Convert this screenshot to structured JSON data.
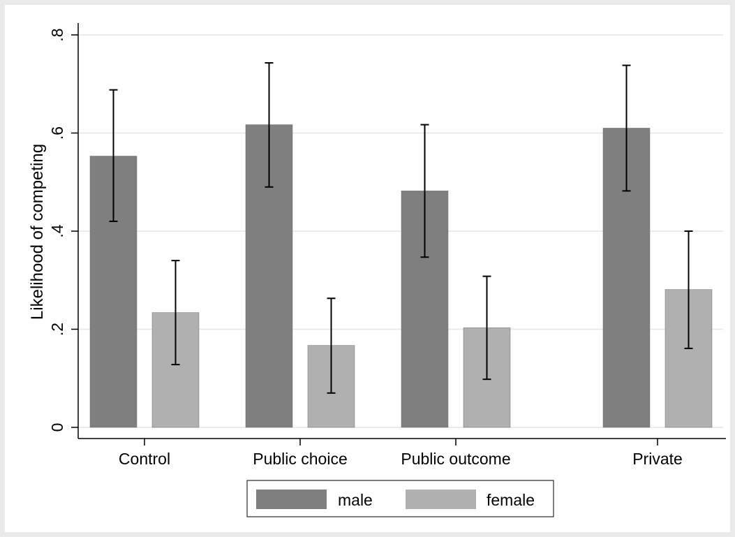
{
  "chart_data": {
    "type": "bar",
    "title": "",
    "xlabel": "",
    "ylabel": "Likelihood of competing",
    "ylim": [
      0,
      0.8
    ],
    "yticks": [
      {
        "value": 0,
        "label": "0"
      },
      {
        "value": 0.2,
        "label": ".2"
      },
      {
        "value": 0.4,
        "label": ".4"
      },
      {
        "value": 0.6,
        "label": ".6"
      },
      {
        "value": 0.8,
        "label": ".8"
      }
    ],
    "grid": true,
    "legend_position": "bottom",
    "categories": [
      "Control",
      "Public choice",
      "Public outcome",
      "Private"
    ],
    "series": [
      {
        "name": "male",
        "color": "#7f7f7f",
        "values": [
          0.553,
          0.617,
          0.482,
          0.61
        ],
        "ci_low": [
          0.42,
          0.49,
          0.347,
          0.482
        ],
        "ci_high": [
          0.688,
          0.743,
          0.617,
          0.738
        ]
      },
      {
        "name": "female",
        "color": "#b0b0b0",
        "values": [
          0.234,
          0.167,
          0.203,
          0.281
        ],
        "ci_low": [
          0.128,
          0.07,
          0.098,
          0.161
        ],
        "ci_high": [
          0.34,
          0.263,
          0.308,
          0.4
        ]
      }
    ],
    "colors": {
      "outer_background": "#eaeaea",
      "plot_background": "#ffffff",
      "gridline": "#e6e6e6"
    }
  }
}
